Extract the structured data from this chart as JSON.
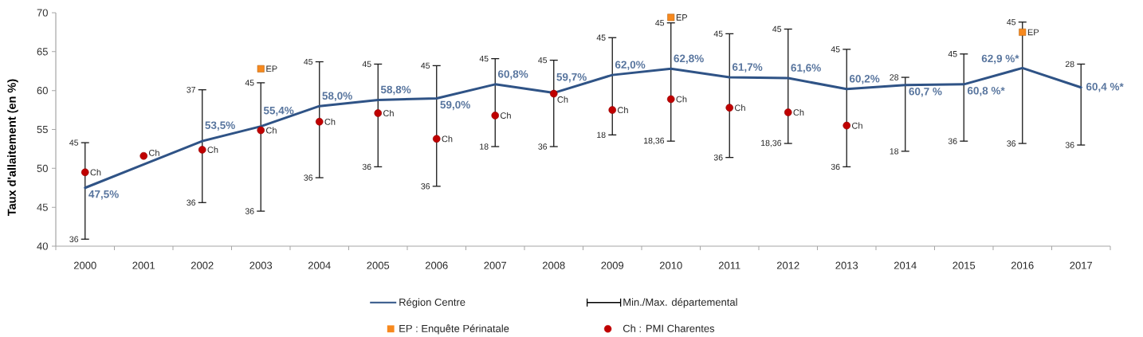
{
  "chart_data": {
    "type": "line",
    "ylabel": "Taux d'allaitement (en %)",
    "categories": [
      "2000",
      "2001",
      "2002",
      "2003",
      "2004",
      "2005",
      "2006",
      "2007",
      "2008",
      "2009",
      "2010",
      "2011",
      "2012",
      "2013",
      "2014",
      "2015",
      "2016",
      "2017"
    ],
    "ylim": [
      40,
      70
    ],
    "yticks": [
      40,
      45,
      50,
      55,
      60,
      65,
      70
    ],
    "legend": "bottom",
    "series": [
      {
        "name": "Région Centre",
        "color": "#2f5386",
        "marker": "none",
        "values": [
          47.5,
          50.5,
          53.5,
          55.4,
          58.0,
          58.8,
          59.0,
          60.8,
          59.7,
          62.0,
          62.8,
          61.7,
          61.6,
          60.2,
          60.7,
          60.8,
          62.9,
          60.4
        ],
        "value_labels": [
          "47,5%",
          null,
          "53,5%",
          "55,4%",
          "58,0%",
          "58,8%",
          "59,0%",
          "60,8%",
          "59,7%",
          "62,0%",
          "62,8%",
          "61,7%",
          "61,6%",
          "60,2%",
          "60,7 %",
          "60,8 %*",
          "62,9 %*",
          "60,4 %*"
        ],
        "errors": [
          [
            40.9,
            53.3
          ],
          null,
          [
            45.6,
            60.1
          ],
          [
            44.5,
            61.0
          ],
          [
            48.8,
            63.7
          ],
          [
            50.2,
            63.4
          ],
          [
            47.7,
            63.2
          ],
          [
            52.8,
            64.1
          ],
          [
            52.8,
            63.9
          ],
          [
            54.3,
            66.8
          ],
          [
            53.5,
            68.7
          ],
          [
            51.4,
            67.3
          ],
          [
            53.2,
            67.9
          ],
          [
            50.2,
            65.3
          ],
          [
            52.2,
            61.7
          ],
          [
            53.5,
            64.7
          ],
          [
            53.2,
            68.8
          ],
          [
            53.0,
            63.4
          ]
        ]
      },
      {
        "name": "Min./Max. départemental",
        "type": "scatter",
        "marker": "none",
        "color": "#000000",
        "values": [
          null,
          null,
          null,
          null,
          null,
          null,
          null,
          null,
          null,
          null,
          null,
          null,
          null,
          null,
          null,
          null,
          null,
          null
        ]
      },
      {
        "name": "EP : Enquête Périnatale",
        "type": "scatter",
        "marker": "square",
        "color": "#f7891e",
        "values": [
          null,
          null,
          null,
          62.8,
          null,
          null,
          null,
          null,
          null,
          null,
          69.4,
          null,
          null,
          null,
          null,
          null,
          67.5,
          null
        ],
        "value_labels": [
          null,
          null,
          null,
          "EP",
          null,
          null,
          null,
          null,
          null,
          null,
          "EP",
          null,
          null,
          null,
          null,
          null,
          "EP",
          null
        ]
      },
      {
        "name": "Ch : PMI Charentes",
        "type": "scatter",
        "marker": "circle",
        "color": "#c00000",
        "values": [
          49.5,
          51.6,
          52.4,
          54.9,
          56.0,
          57.1,
          53.8,
          56.8,
          59.6,
          57.5,
          58.9,
          57.8,
          57.2,
          55.5,
          null,
          null,
          null,
          null
        ],
        "value_labels": [
          "Ch",
          "Ch",
          "Ch",
          "Ch",
          "Ch",
          "Ch",
          "Ch",
          "Ch",
          "Ch",
          "Ch",
          "Ch",
          "Ch",
          "Ch",
          "Ch",
          null,
          null,
          null,
          null
        ]
      }
    ],
    "annotations": [
      {
        "text": "45",
        "x": "2000",
        "y": 53.3
      },
      {
        "text": "36",
        "x": "2000",
        "y": 40.9
      },
      {
        "text": "37",
        "x": "2002",
        "y": 60.1
      },
      {
        "text": "36",
        "x": "2002",
        "y": 45.6
      },
      {
        "text": "45",
        "x": "2003",
        "y": 61.0
      },
      {
        "text": "36",
        "x": "2003",
        "y": 44.5
      },
      {
        "text": "45",
        "x": "2004",
        "y": 63.7
      },
      {
        "text": "36",
        "x": "2004",
        "y": 48.8
      },
      {
        "text": "45",
        "x": "2005",
        "y": 63.4
      },
      {
        "text": "36",
        "x": "2005",
        "y": 50.2
      },
      {
        "text": "45",
        "x": "2006",
        "y": 63.2
      },
      {
        "text": "36",
        "x": "2006",
        "y": 47.7
      },
      {
        "text": "45",
        "x": "2007",
        "y": 64.1
      },
      {
        "text": "18",
        "x": "2007",
        "y": 52.8
      },
      {
        "text": "45",
        "x": "2008",
        "y": 63.9
      },
      {
        "text": "36",
        "x": "2008",
        "y": 52.8
      },
      {
        "text": "45",
        "x": "2009",
        "y": 66.8
      },
      {
        "text": "18",
        "x": "2009",
        "y": 54.3
      },
      {
        "text": "45",
        "x": "2010",
        "y": 68.7
      },
      {
        "text": "18,36",
        "x": "2010",
        "y": 53.5
      },
      {
        "text": "45",
        "x": "2011",
        "y": 67.3
      },
      {
        "text": "36",
        "x": "2011",
        "y": 51.4
      },
      {
        "text": "45",
        "x": "2012",
        "y": 67.9
      },
      {
        "text": "18,36",
        "x": "2012",
        "y": 53.2
      },
      {
        "text": "45",
        "x": "2013",
        "y": 65.3
      },
      {
        "text": "36",
        "x": "2013",
        "y": 50.2
      },
      {
        "text": "28",
        "x": "2014",
        "y": 61.7
      },
      {
        "text": "18",
        "x": "2014",
        "y": 52.2
      },
      {
        "text": "45",
        "x": "2015",
        "y": 64.7
      },
      {
        "text": "36",
        "x": "2015",
        "y": 53.5
      },
      {
        "text": "45",
        "x": "2016",
        "y": 68.8
      },
      {
        "text": "36",
        "x": "2016",
        "y": 53.2
      },
      {
        "text": "28",
        "x": "2017",
        "y": 63.4
      },
      {
        "text": "36",
        "x": "2017",
        "y": 53.0
      }
    ]
  }
}
